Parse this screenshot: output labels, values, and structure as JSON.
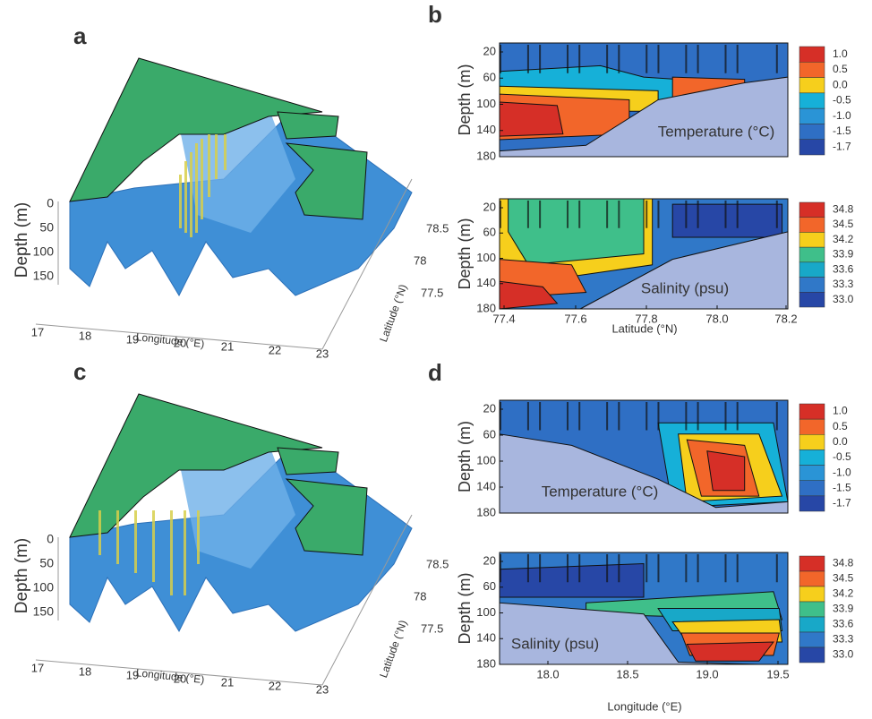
{
  "panels": {
    "a": {
      "label": "a",
      "depth_label": "Depth (m)",
      "depth_ticks": [
        "0",
        "50",
        "100",
        "150"
      ],
      "longitude_ticks": [
        "17",
        "18",
        "19",
        "20",
        "21",
        "22",
        "23"
      ],
      "longitude_label": "Longitude (°E)",
      "latitude_ticks": [
        "77.5",
        "78",
        "78.5"
      ],
      "latitude_label": "Latitude (°N)"
    },
    "b": {
      "label": "b",
      "depth_label": "Depth (m)",
      "yticks": [
        "20",
        "60",
        "100",
        "140",
        "180"
      ],
      "xticks": [
        "77.4",
        "77.6",
        "77.8",
        "78.0",
        "78.2"
      ],
      "x_label": "Latitude (°N)",
      "temperature_label": "Temperature (°C)",
      "salinity_label": "Salinity (psu)",
      "temperature_scale": [
        "1.0",
        "0.5",
        "0.0",
        "-0.5",
        "-1.0",
        "-1.5",
        "-1.7"
      ],
      "salinity_scale": [
        "34.8",
        "34.5",
        "34.2",
        "33.9",
        "33.6",
        "33.3",
        "33.0"
      ]
    },
    "c": {
      "label": "c",
      "depth_label": "Depth (m)",
      "depth_ticks": [
        "0",
        "50",
        "100",
        "150"
      ],
      "longitude_ticks": [
        "17",
        "18",
        "19",
        "20",
        "21",
        "22",
        "23"
      ],
      "longitude_label": "Longitude (°E)",
      "latitude_ticks": [
        "77.5",
        "78",
        "78.5"
      ],
      "latitude_label": "Latitude (°N)"
    },
    "d": {
      "label": "d",
      "depth_label": "Depth (m)",
      "yticks": [
        "20",
        "60",
        "100",
        "140",
        "180"
      ],
      "xticks": [
        "18.0",
        "18.5",
        "19.0",
        "19.5"
      ],
      "x_label": "Longitude (°E)",
      "temperature_label": "Temperature (°C)",
      "salinity_label": "Salinity (psu)",
      "temperature_scale": [
        "1.0",
        "0.5",
        "0.0",
        "-0.5",
        "-1.0",
        "-1.5",
        "-1.7"
      ],
      "salinity_scale": [
        "34.8",
        "34.5",
        "34.2",
        "33.9",
        "33.6",
        "33.3",
        "33.0"
      ]
    }
  }
}
